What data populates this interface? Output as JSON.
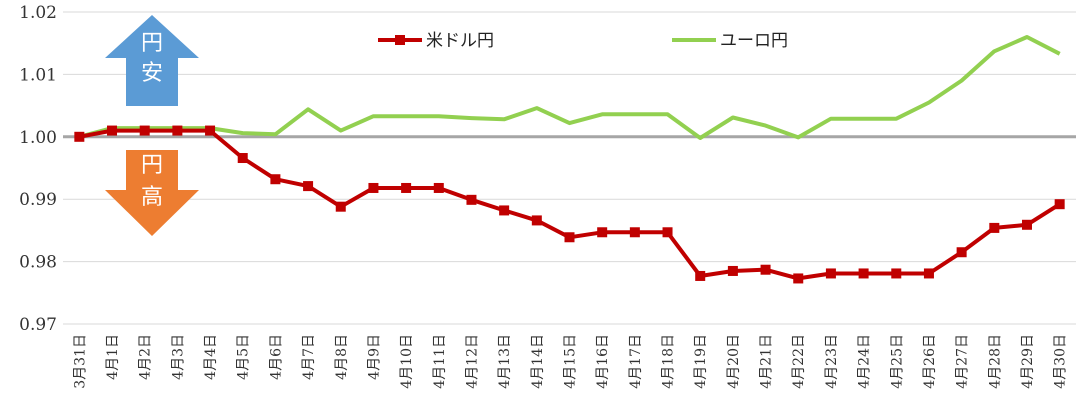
{
  "chart_data": {
    "type": "line",
    "title": "",
    "xlabel": "",
    "ylabel": "",
    "ylim": [
      0.97,
      1.02
    ],
    "yticks": [
      "0.97",
      "0.98",
      "0.99",
      "1.00",
      "1.01",
      "1.02"
    ],
    "grid": "horizontal",
    "legend_position": "top",
    "baseline": 1.0,
    "categories": [
      "3月31日",
      "4月1日",
      "4月2日",
      "4月3日",
      "4月4日",
      "4月5日",
      "4月6日",
      "4月7日",
      "4月8日",
      "4月9日",
      "4月10日",
      "4月11日",
      "4月12日",
      "4月13日",
      "4月14日",
      "4月15日",
      "4月16日",
      "4月17日",
      "4月18日",
      "4月19日",
      "4月20日",
      "4月21日",
      "4月22日",
      "4月23日",
      "4月24日",
      "4月25日",
      "4月26日",
      "4月27日",
      "4月28日",
      "4月29日",
      "4月30日"
    ],
    "series": [
      {
        "name": "米ドル円",
        "color": "#c00000",
        "marker": "square",
        "values": [
          1.0,
          1.001,
          1.001,
          1.001,
          1.001,
          0.9966,
          0.9932,
          0.9921,
          0.9888,
          0.9918,
          0.9918,
          0.9918,
          0.9899,
          0.9882,
          0.9866,
          0.9839,
          0.9847,
          0.9847,
          0.9847,
          0.9777,
          0.9785,
          0.9787,
          0.9773,
          0.9781,
          0.9781,
          0.9781,
          0.9781,
          0.9815,
          0.9854,
          0.9859,
          0.9892
        ]
      },
      {
        "name": "ユーロ円",
        "color": "#92d050",
        "marker": "none",
        "values": [
          1.0,
          1.0014,
          1.0014,
          1.0014,
          1.0014,
          1.0006,
          1.0004,
          1.0044,
          1.001,
          1.0033,
          1.0033,
          1.0033,
          1.003,
          1.0028,
          1.0046,
          1.0022,
          1.0036,
          1.0036,
          1.0036,
          0.9998,
          1.0031,
          1.0018,
          0.9999,
          1.0029,
          1.0029,
          1.0029,
          1.0055,
          1.009,
          1.0137,
          1.016,
          1.0133
        ]
      }
    ],
    "annotations": [
      {
        "text": "円\n安",
        "direction": "up",
        "color": "#5b9bd5"
      },
      {
        "text": "円\n高",
        "direction": "down",
        "color": "#ed7d31"
      }
    ]
  }
}
